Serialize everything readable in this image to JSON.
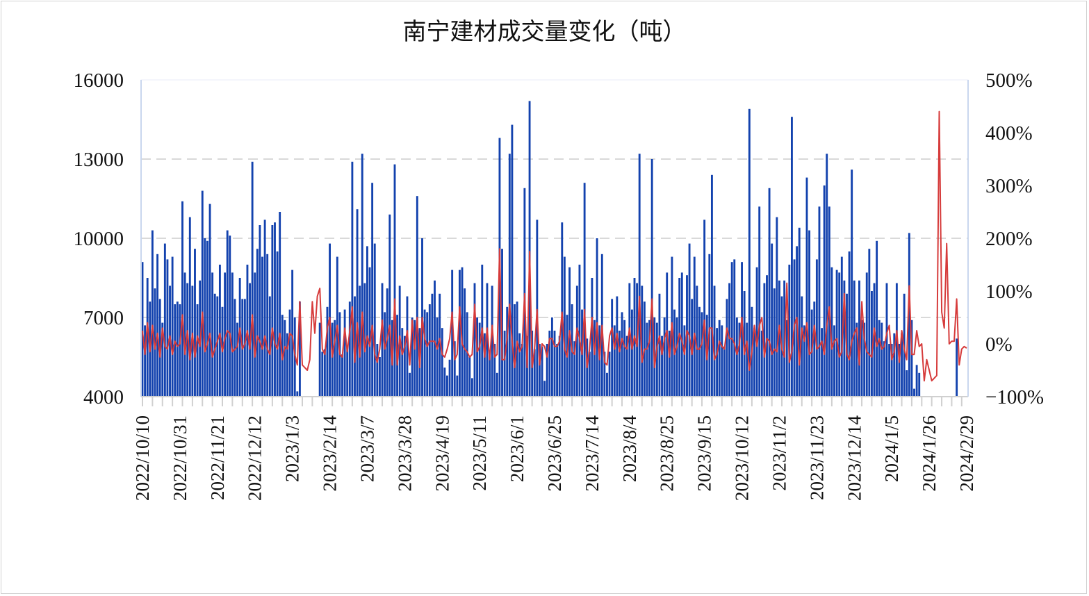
{
  "chart_data": {
    "type": "bar+line",
    "title": "南宁建材成交量变化（吨）",
    "colors": {
      "bars": "#1342ae",
      "line": "#d63b3b",
      "grid": "#d9d9d9",
      "plot_border": "#c9d7ee"
    },
    "y_left": {
      "range": [
        4000,
        16000
      ],
      "ticks": [
        4000,
        7000,
        10000,
        13000,
        16000
      ],
      "tick_labels": [
        "4000",
        "7000",
        "10000",
        "13000",
        "16000"
      ]
    },
    "y_right": {
      "range": [
        -100,
        500
      ],
      "ticks": [
        -100,
        0,
        100,
        200,
        300,
        400,
        500
      ],
      "tick_labels": [
        "−100%",
        "0%",
        "100%",
        "200%",
        "300%",
        "400%",
        "500%"
      ]
    },
    "grid": "horizontal dashed",
    "x_tick_labels": [
      "2022/10/10",
      "2022/10/31",
      "2022/11/21",
      "2022/12/12",
      "2023/1/3",
      "2023/2/14",
      "2023/3/7",
      "2023/3/28",
      "2023/4/19",
      "2023/5/11",
      "2023/6/1",
      "2023/6/25",
      "2023/7/14",
      "2023/8/4",
      "2023/8/25",
      "2023/9/15",
      "2023/10/12",
      "2023/11/2",
      "2023/11/23",
      "2023/12/14",
      "2024/1/5",
      "2024/1/26",
      "2024/2/29"
    ],
    "x_label_every": 15,
    "bar_values": [
      9100,
      6700,
      8500,
      7600,
      10300,
      8100,
      9400,
      7700,
      6800,
      9800,
      9200,
      8200,
      9300,
      7500,
      7600,
      7500,
      11400,
      8700,
      8300,
      10800,
      8200,
      9600,
      7500,
      8400,
      11800,
      10000,
      9900,
      11300,
      8700,
      7900,
      7800,
      9000,
      7400,
      8700,
      10300,
      10100,
      8700,
      7700,
      6800,
      8500,
      7700,
      7700,
      9000,
      8300,
      12900,
      8700,
      9600,
      10500,
      9300,
      10700,
      9400,
      7800,
      10500,
      10600,
      9500,
      11000,
      7100,
      6900,
      6400,
      7300,
      8800,
      7000,
      4200,
      7600,
      null,
      null,
      null,
      null,
      null,
      null,
      null,
      6800,
      5700,
      5800,
      7400,
      9800,
      6800,
      6900,
      9300,
      7200,
      5600,
      7300,
      5900,
      7600,
      12900,
      7800,
      11100,
      8200,
      13200,
      8300,
      9700,
      8900,
      12100,
      9800,
      6000,
      5500,
      8300,
      7200,
      8100,
      10900,
      6900,
      12800,
      7100,
      8200,
      6600,
      6300,
      7800,
      4900,
      7000,
      6900,
      11600,
      6600,
      10000,
      7300,
      7200,
      7500,
      7900,
      8400,
      7000,
      7900,
      6600,
      5100,
      4800,
      5400,
      8800,
      6100,
      4800,
      8800,
      8900,
      8100,
      7200,
      5500,
      4700,
      8300,
      7000,
      6800,
      9000,
      6400,
      8300,
      5700,
      8200,
      6000,
      4900,
      13800,
      9600,
      6500,
      7400,
      13200,
      14300,
      7500,
      7600,
      6400,
      6000,
      11900,
      6300,
      15200,
      6500,
      5800,
      10700,
      6000,
      5900,
      4600,
      6000,
      6500,
      7000,
      6500,
      6000,
      6300,
      10600,
      9300,
      7100,
      8900,
      7500,
      6100,
      8200,
      9000,
      7300,
      12100,
      6200,
      5700,
      8500,
      6900,
      10000,
      6700,
      9400,
      5700,
      4900,
      5700,
      7700,
      6700,
      7800,
      6500,
      7200,
      6900,
      6300,
      8300,
      7300,
      8500,
      8300,
      13200,
      8200,
      7600,
      6800,
      6900,
      13000,
      7000,
      6800,
      7900,
      6300,
      7000,
      8700,
      6500,
      9300,
      7300,
      7000,
      8500,
      8700,
      6700,
      8600,
      9800,
      7700,
      9300,
      8200,
      7400,
      7200,
      10700,
      7100,
      9400,
      12400,
      8200,
      6600,
      6900,
      6700,
      5900,
      7700,
      8300,
      9100,
      9200,
      7000,
      6800,
      9100,
      8000,
      6800,
      14900,
      7400,
      6600,
      8900,
      11200,
      6500,
      8300,
      8600,
      11900,
      9800,
      8100,
      10800,
      8400,
      7800,
      8400,
      6900,
      9000,
      14600,
      9200,
      9700,
      10400,
      7800,
      6700,
      12300,
      10300,
      7300,
      7600,
      9200,
      11200,
      6600,
      12000,
      13200,
      11200,
      8900,
      6700,
      8800,
      8700,
      9300,
      8400,
      7900,
      9500,
      12600,
      8400,
      6800,
      8400,
      6900,
      6800,
      8700,
      9600,
      8000,
      8300,
      9900,
      6900,
      6800,
      6100,
      8300,
      6000,
      6000,
      6400,
      8300,
      6000,
      6400,
      7900,
      5000,
      10200,
      6900,
      4300,
      5200,
      4900,
      null,
      null,
      null,
      null,
      null,
      null,
      null,
      null,
      null,
      null,
      null,
      null,
      null,
      null,
      6200,
      null,
      null,
      null,
      null
    ],
    "line_values_pct": [
      25,
      -20,
      40,
      -15,
      35,
      -10,
      20,
      -25,
      30,
      -5,
      -10,
      15,
      -20,
      5,
      -5,
      0,
      55,
      -20,
      25,
      -30,
      20,
      -25,
      15,
      -5,
      60,
      -15,
      0,
      20,
      -25,
      -10,
      5,
      20,
      -15,
      10,
      25,
      20,
      -15,
      -10,
      -5,
      30,
      -10,
      0,
      25,
      -10,
      55,
      -25,
      15,
      5,
      -10,
      15,
      -10,
      -20,
      30,
      0,
      -10,
      20,
      -30,
      -5,
      -10,
      20,
      15,
      -20,
      -40,
      80,
      -40,
      -45,
      -50,
      -30,
      80,
      20,
      90,
      105,
      -10,
      -20,
      30,
      50,
      -25,
      5,
      35,
      -20,
      -25,
      30,
      -15,
      25,
      70,
      -35,
      40,
      -25,
      60,
      -15,
      15,
      -5,
      35,
      -20,
      -35,
      -10,
      45,
      -10,
      10,
      35,
      -40,
      85,
      -40,
      15,
      -20,
      -5,
      25,
      -40,
      45,
      -10,
      50,
      -45,
      50,
      10,
      -5,
      5,
      5,
      5,
      -10,
      10,
      -20,
      -25,
      -10,
      10,
      60,
      -30,
      -20,
      70,
      0,
      -10,
      -15,
      -25,
      -20,
      75,
      -15,
      -5,
      30,
      -25,
      30,
      -30,
      35,
      -25,
      -20,
      180,
      -30,
      -30,
      10,
      75,
      5,
      -45,
      5,
      -15,
      -5,
      95,
      -45,
      175,
      -45,
      -10,
      65,
      -40,
      0,
      -5,
      -25,
      10,
      10,
      -5,
      -5,
      5,
      60,
      -10,
      -25,
      25,
      -15,
      -20,
      30,
      10,
      -20,
      65,
      -45,
      -10,
      50,
      -20,
      40,
      -30,
      35,
      -35,
      -40,
      15,
      30,
      -10,
      20,
      -15,
      10,
      -5,
      -10,
      30,
      -10,
      15,
      -5,
      90,
      -35,
      -10,
      -10,
      5,
      85,
      -45,
      -5,
      15,
      -20,
      10,
      25,
      -25,
      40,
      -20,
      -5,
      20,
      5,
      -20,
      25,
      15,
      -20,
      20,
      -10,
      -10,
      0,
      45,
      -30,
      30,
      30,
      -30,
      -20,
      5,
      -5,
      -10,
      30,
      10,
      10,
      0,
      -20,
      0,
      50,
      -20,
      5,
      -50,
      -15,
      35,
      -5,
      35,
      50,
      -25,
      10,
      5,
      -20,
      -10,
      -15,
      35,
      -10,
      -25,
      115,
      -35,
      -15,
      35,
      50,
      -40,
      30,
      5,
      40,
      -20,
      -15,
      35,
      -10,
      -5,
      5,
      -20,
      35,
      70,
      -10,
      5,
      10,
      -25,
      -15,
      95,
      -20,
      -30,
      5,
      20,
      30,
      -40,
      80,
      10,
      -15,
      -20,
      -25,
      30,
      -5,
      10,
      -10,
      -5,
      20,
      35,
      -30,
      -15,
      25,
      -35,
      25,
      -10,
      -30,
      110,
      -20,
      -20,
      25,
      -5,
      0,
      -70,
      -30,
      -50,
      -70,
      -65,
      -60,
      440,
      60,
      30,
      190,
      0,
      5,
      5,
      85,
      -40,
      -10,
      -5,
      -8
    ]
  }
}
